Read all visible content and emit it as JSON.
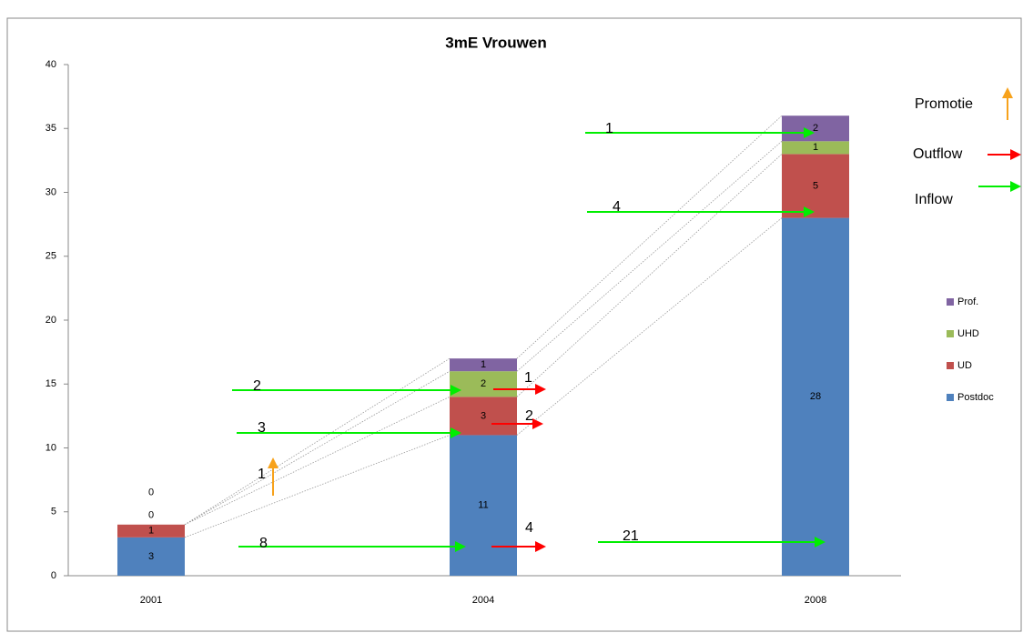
{
  "chart_data": {
    "type": "bar",
    "stacked": true,
    "title": "3mE Vrouwen",
    "categories": [
      "2001",
      "2004",
      "2008"
    ],
    "series": [
      {
        "name": "Postdoc",
        "color": "#4f81bd",
        "values": [
          3,
          11,
          28
        ]
      },
      {
        "name": "UD",
        "color": "#c0504d",
        "values": [
          1,
          3,
          5
        ]
      },
      {
        "name": "UHD",
        "color": "#9bbb59",
        "values": [
          0,
          2,
          1
        ]
      },
      {
        "name": "Prof.",
        "color": "#8064a2",
        "values": [
          0,
          1,
          2
        ]
      }
    ],
    "ylim": [
      0,
      40
    ],
    "yticks": [
      0,
      5,
      10,
      15,
      20,
      25,
      30,
      35,
      40
    ],
    "grid": false,
    "legend": "right",
    "flow_legend": [
      {
        "name": "Promotie",
        "color": "#f7a21b"
      },
      {
        "name": "Outflow",
        "color": "#ff0000"
      },
      {
        "name": "Inflow",
        "color": "#00ee00"
      }
    ],
    "promotions": [
      1
    ],
    "outflows": [
      4,
      2,
      1
    ],
    "inflows": [
      8,
      3,
      2,
      21,
      4,
      1
    ]
  }
}
